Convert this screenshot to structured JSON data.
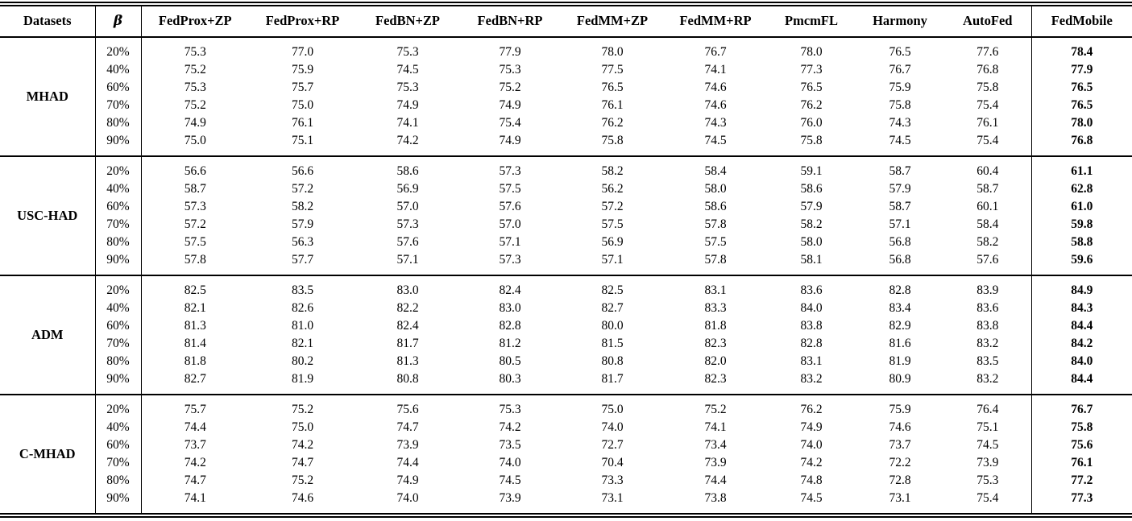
{
  "table": {
    "columns": [
      "Datasets",
      "β",
      "FedProx+ZP",
      "FedProx+RP",
      "FedBN+ZP",
      "FedBN+RP",
      "FedMM+ZP",
      "FedMM+RP",
      "PmcmFL",
      "Harmony",
      "AutoFed",
      "FedMobile"
    ],
    "sections": [
      {
        "dataset": "MHAD",
        "rows": [
          {
            "beta": "20%",
            "values": [
              "75.3",
              "77.0",
              "75.3",
              "77.9",
              "78.0",
              "76.7",
              "78.0",
              "76.5",
              "77.6"
            ],
            "fedmobile": "78.4"
          },
          {
            "beta": "40%",
            "values": [
              "75.2",
              "75.9",
              "74.5",
              "75.3",
              "77.5",
              "74.1",
              "77.3",
              "76.7",
              "76.8"
            ],
            "fedmobile": "77.9"
          },
          {
            "beta": "60%",
            "values": [
              "75.3",
              "75.7",
              "75.3",
              "75.2",
              "76.5",
              "74.6",
              "76.5",
              "75.9",
              "75.8"
            ],
            "fedmobile": "76.5"
          },
          {
            "beta": "70%",
            "values": [
              "75.2",
              "75.0",
              "74.9",
              "74.9",
              "76.1",
              "74.6",
              "76.2",
              "75.8",
              "75.4"
            ],
            "fedmobile": "76.5"
          },
          {
            "beta": "80%",
            "values": [
              "74.9",
              "76.1",
              "74.1",
              "75.4",
              "76.2",
              "74.3",
              "76.0",
              "74.3",
              "76.1"
            ],
            "fedmobile": "78.0"
          },
          {
            "beta": "90%",
            "values": [
              "75.0",
              "75.1",
              "74.2",
              "74.9",
              "75.8",
              "74.5",
              "75.8",
              "74.5",
              "75.4"
            ],
            "fedmobile": "76.8"
          }
        ]
      },
      {
        "dataset": "USC-HAD",
        "rows": [
          {
            "beta": "20%",
            "values": [
              "56.6",
              "56.6",
              "58.6",
              "57.3",
              "58.2",
              "58.4",
              "59.1",
              "58.7",
              "60.4"
            ],
            "fedmobile": "61.1"
          },
          {
            "beta": "40%",
            "values": [
              "58.7",
              "57.2",
              "56.9",
              "57.5",
              "56.2",
              "58.0",
              "58.6",
              "57.9",
              "58.7"
            ],
            "fedmobile": "62.8"
          },
          {
            "beta": "60%",
            "values": [
              "57.3",
              "58.2",
              "57.0",
              "57.6",
              "57.2",
              "58.6",
              "57.9",
              "58.7",
              "60.1"
            ],
            "fedmobile": "61.0"
          },
          {
            "beta": "70%",
            "values": [
              "57.2",
              "57.9",
              "57.3",
              "57.0",
              "57.5",
              "57.8",
              "58.2",
              "57.1",
              "58.4"
            ],
            "fedmobile": "59.8"
          },
          {
            "beta": "80%",
            "values": [
              "57.5",
              "56.3",
              "57.6",
              "57.1",
              "56.9",
              "57.5",
              "58.0",
              "56.8",
              "58.2"
            ],
            "fedmobile": "58.8"
          },
          {
            "beta": "90%",
            "values": [
              "57.8",
              "57.7",
              "57.1",
              "57.3",
              "57.1",
              "57.8",
              "58.1",
              "56.8",
              "57.6"
            ],
            "fedmobile": "59.6"
          }
        ]
      },
      {
        "dataset": "ADM",
        "rows": [
          {
            "beta": "20%",
            "values": [
              "82.5",
              "83.5",
              "83.0",
              "82.4",
              "82.5",
              "83.1",
              "83.6",
              "82.8",
              "83.9"
            ],
            "fedmobile": "84.9"
          },
          {
            "beta": "40%",
            "values": [
              "82.1",
              "82.6",
              "82.2",
              "83.0",
              "82.7",
              "83.3",
              "84.0",
              "83.4",
              "83.6"
            ],
            "fedmobile": "84.3"
          },
          {
            "beta": "60%",
            "values": [
              "81.3",
              "81.0",
              "82.4",
              "82.8",
              "80.0",
              "81.8",
              "83.8",
              "82.9",
              "83.8"
            ],
            "fedmobile": "84.4"
          },
          {
            "beta": "70%",
            "values": [
              "81.4",
              "82.1",
              "81.7",
              "81.2",
              "81.5",
              "82.3",
              "82.8",
              "81.6",
              "83.2"
            ],
            "fedmobile": "84.2"
          },
          {
            "beta": "80%",
            "values": [
              "81.8",
              "80.2",
              "81.3",
              "80.5",
              "80.8",
              "82.0",
              "83.1",
              "81.9",
              "83.5"
            ],
            "fedmobile": "84.0"
          },
          {
            "beta": "90%",
            "values": [
              "82.7",
              "81.9",
              "80.8",
              "80.3",
              "81.7",
              "82.3",
              "83.2",
              "80.9",
              "83.2"
            ],
            "fedmobile": "84.4"
          }
        ]
      },
      {
        "dataset": "C-MHAD",
        "rows": [
          {
            "beta": "20%",
            "values": [
              "75.7",
              "75.2",
              "75.6",
              "75.3",
              "75.0",
              "75.2",
              "76.2",
              "75.9",
              "76.4"
            ],
            "fedmobile": "76.7"
          },
          {
            "beta": "40%",
            "values": [
              "74.4",
              "75.0",
              "74.7",
              "74.2",
              "74.0",
              "74.1",
              "74.9",
              "74.6",
              "75.1"
            ],
            "fedmobile": "75.8"
          },
          {
            "beta": "60%",
            "values": [
              "73.7",
              "74.2",
              "73.9",
              "73.5",
              "72.7",
              "73.4",
              "74.0",
              "73.7",
              "74.5"
            ],
            "fedmobile": "75.6"
          },
          {
            "beta": "70%",
            "values": [
              "74.2",
              "74.7",
              "74.4",
              "74.0",
              "70.4",
              "73.9",
              "74.2",
              "72.2",
              "73.9"
            ],
            "fedmobile": "76.1"
          },
          {
            "beta": "80%",
            "values": [
              "74.7",
              "75.2",
              "74.9",
              "74.5",
              "73.3",
              "74.4",
              "74.8",
              "72.8",
              "75.3"
            ],
            "fedmobile": "77.2"
          },
          {
            "beta": "90%",
            "values": [
              "74.1",
              "74.6",
              "74.0",
              "73.9",
              "73.1",
              "73.8",
              "74.5",
              "73.1",
              "75.4"
            ],
            "fedmobile": "77.3"
          }
        ]
      }
    ]
  }
}
